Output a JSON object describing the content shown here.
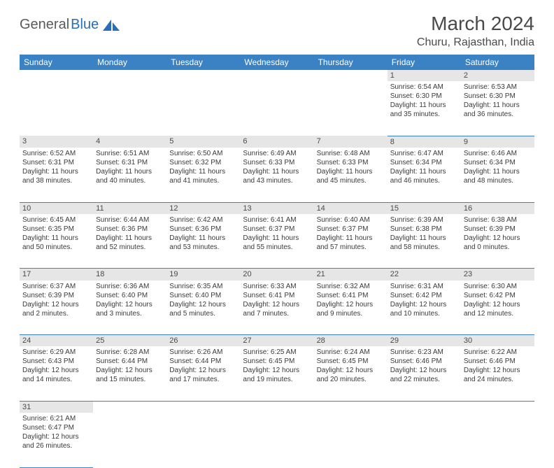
{
  "logo": {
    "part1": "General",
    "part2": "Blue"
  },
  "title": "March 2024",
  "location": "Churu, Rajasthan, India",
  "colors": {
    "header_bg": "#3b82c4",
    "header_text": "#ffffff",
    "daynum_bg": "#e6e6e6",
    "border": "#3b82c4",
    "body_text": "#3a3a3a",
    "title_text": "#4a4a4a",
    "logo_blue": "#2a6db8",
    "logo_gray": "#5a5a5a"
  },
  "weekdays": [
    "Sunday",
    "Monday",
    "Tuesday",
    "Wednesday",
    "Thursday",
    "Friday",
    "Saturday"
  ],
  "weeks": [
    [
      null,
      null,
      null,
      null,
      null,
      {
        "n": "1",
        "sr": "Sunrise: 6:54 AM",
        "ss": "Sunset: 6:30 PM",
        "dl": "Daylight: 11 hours and 35 minutes."
      },
      {
        "n": "2",
        "sr": "Sunrise: 6:53 AM",
        "ss": "Sunset: 6:30 PM",
        "dl": "Daylight: 11 hours and 36 minutes."
      }
    ],
    [
      {
        "n": "3",
        "sr": "Sunrise: 6:52 AM",
        "ss": "Sunset: 6:31 PM",
        "dl": "Daylight: 11 hours and 38 minutes."
      },
      {
        "n": "4",
        "sr": "Sunrise: 6:51 AM",
        "ss": "Sunset: 6:31 PM",
        "dl": "Daylight: 11 hours and 40 minutes."
      },
      {
        "n": "5",
        "sr": "Sunrise: 6:50 AM",
        "ss": "Sunset: 6:32 PM",
        "dl": "Daylight: 11 hours and 41 minutes."
      },
      {
        "n": "6",
        "sr": "Sunrise: 6:49 AM",
        "ss": "Sunset: 6:33 PM",
        "dl": "Daylight: 11 hours and 43 minutes."
      },
      {
        "n": "7",
        "sr": "Sunrise: 6:48 AM",
        "ss": "Sunset: 6:33 PM",
        "dl": "Daylight: 11 hours and 45 minutes."
      },
      {
        "n": "8",
        "sr": "Sunrise: 6:47 AM",
        "ss": "Sunset: 6:34 PM",
        "dl": "Daylight: 11 hours and 46 minutes."
      },
      {
        "n": "9",
        "sr": "Sunrise: 6:46 AM",
        "ss": "Sunset: 6:34 PM",
        "dl": "Daylight: 11 hours and 48 minutes."
      }
    ],
    [
      {
        "n": "10",
        "sr": "Sunrise: 6:45 AM",
        "ss": "Sunset: 6:35 PM",
        "dl": "Daylight: 11 hours and 50 minutes."
      },
      {
        "n": "11",
        "sr": "Sunrise: 6:44 AM",
        "ss": "Sunset: 6:36 PM",
        "dl": "Daylight: 11 hours and 52 minutes."
      },
      {
        "n": "12",
        "sr": "Sunrise: 6:42 AM",
        "ss": "Sunset: 6:36 PM",
        "dl": "Daylight: 11 hours and 53 minutes."
      },
      {
        "n": "13",
        "sr": "Sunrise: 6:41 AM",
        "ss": "Sunset: 6:37 PM",
        "dl": "Daylight: 11 hours and 55 minutes."
      },
      {
        "n": "14",
        "sr": "Sunrise: 6:40 AM",
        "ss": "Sunset: 6:37 PM",
        "dl": "Daylight: 11 hours and 57 minutes."
      },
      {
        "n": "15",
        "sr": "Sunrise: 6:39 AM",
        "ss": "Sunset: 6:38 PM",
        "dl": "Daylight: 11 hours and 58 minutes."
      },
      {
        "n": "16",
        "sr": "Sunrise: 6:38 AM",
        "ss": "Sunset: 6:39 PM",
        "dl": "Daylight: 12 hours and 0 minutes."
      }
    ],
    [
      {
        "n": "17",
        "sr": "Sunrise: 6:37 AM",
        "ss": "Sunset: 6:39 PM",
        "dl": "Daylight: 12 hours and 2 minutes."
      },
      {
        "n": "18",
        "sr": "Sunrise: 6:36 AM",
        "ss": "Sunset: 6:40 PM",
        "dl": "Daylight: 12 hours and 3 minutes."
      },
      {
        "n": "19",
        "sr": "Sunrise: 6:35 AM",
        "ss": "Sunset: 6:40 PM",
        "dl": "Daylight: 12 hours and 5 minutes."
      },
      {
        "n": "20",
        "sr": "Sunrise: 6:33 AM",
        "ss": "Sunset: 6:41 PM",
        "dl": "Daylight: 12 hours and 7 minutes."
      },
      {
        "n": "21",
        "sr": "Sunrise: 6:32 AM",
        "ss": "Sunset: 6:41 PM",
        "dl": "Daylight: 12 hours and 9 minutes."
      },
      {
        "n": "22",
        "sr": "Sunrise: 6:31 AM",
        "ss": "Sunset: 6:42 PM",
        "dl": "Daylight: 12 hours and 10 minutes."
      },
      {
        "n": "23",
        "sr": "Sunrise: 6:30 AM",
        "ss": "Sunset: 6:42 PM",
        "dl": "Daylight: 12 hours and 12 minutes."
      }
    ],
    [
      {
        "n": "24",
        "sr": "Sunrise: 6:29 AM",
        "ss": "Sunset: 6:43 PM",
        "dl": "Daylight: 12 hours and 14 minutes."
      },
      {
        "n": "25",
        "sr": "Sunrise: 6:28 AM",
        "ss": "Sunset: 6:44 PM",
        "dl": "Daylight: 12 hours and 15 minutes."
      },
      {
        "n": "26",
        "sr": "Sunrise: 6:26 AM",
        "ss": "Sunset: 6:44 PM",
        "dl": "Daylight: 12 hours and 17 minutes."
      },
      {
        "n": "27",
        "sr": "Sunrise: 6:25 AM",
        "ss": "Sunset: 6:45 PM",
        "dl": "Daylight: 12 hours and 19 minutes."
      },
      {
        "n": "28",
        "sr": "Sunrise: 6:24 AM",
        "ss": "Sunset: 6:45 PM",
        "dl": "Daylight: 12 hours and 20 minutes."
      },
      {
        "n": "29",
        "sr": "Sunrise: 6:23 AM",
        "ss": "Sunset: 6:46 PM",
        "dl": "Daylight: 12 hours and 22 minutes."
      },
      {
        "n": "30",
        "sr": "Sunrise: 6:22 AM",
        "ss": "Sunset: 6:46 PM",
        "dl": "Daylight: 12 hours and 24 minutes."
      }
    ],
    [
      {
        "n": "31",
        "sr": "Sunrise: 6:21 AM",
        "ss": "Sunset: 6:47 PM",
        "dl": "Daylight: 12 hours and 26 minutes."
      },
      null,
      null,
      null,
      null,
      null,
      null
    ]
  ]
}
